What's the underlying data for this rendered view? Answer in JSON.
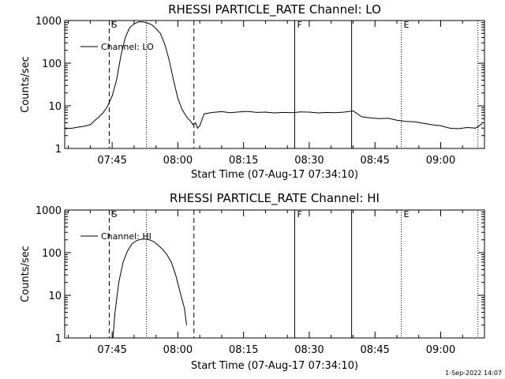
{
  "chart_data": [
    {
      "type": "line",
      "title": "RHESSI PARTICLE_RATE Channel: LO",
      "xlabel": "Start Time (07-Aug-17 07:34:10)",
      "ylabel": "Counts/sec",
      "yscale": "log",
      "ylim": [
        1,
        1000
      ],
      "xlim": [
        "07:34:10",
        "09:10:00"
      ],
      "x_ticks": [
        "07:45",
        "08:00",
        "08:15",
        "08:30",
        "08:45",
        "09:00"
      ],
      "y_ticks": [
        "1",
        "10",
        "100",
        "1000"
      ],
      "legend": "Channel: LO",
      "legend_position": "top-left",
      "marker_labels": [
        "S",
        "F",
        "E"
      ],
      "vlines": [
        {
          "x": "07:44:20",
          "style": "dashed"
        },
        {
          "x": "07:52:50",
          "style": "dotted"
        },
        {
          "x": "08:03:40",
          "style": "dashed"
        },
        {
          "x": "08:26:40",
          "style": "solid"
        },
        {
          "x": "08:39:40",
          "style": "solid"
        },
        {
          "x": "08:51:00",
          "style": "dotted"
        },
        {
          "x": "09:08:30",
          "style": "dotted"
        }
      ],
      "series": [
        {
          "name": "Channel: LO",
          "x": [
            "07:34:10",
            "07:36:00",
            "07:37:30",
            "07:38:30",
            "07:40:00",
            "07:41:00",
            "07:42:00",
            "07:43:00",
            "07:44:00",
            "07:45:00",
            "07:46:00",
            "07:47:00",
            "07:48:00",
            "07:49:00",
            "07:50:00",
            "07:51:00",
            "07:52:00",
            "07:53:00",
            "07:54:00",
            "07:55:00",
            "07:56:00",
            "07:57:00",
            "07:58:00",
            "07:59:00",
            "08:00:00",
            "08:01:00",
            "08:02:00",
            "08:03:00",
            "08:03:30",
            "08:04:00",
            "08:04:30",
            "08:05:00",
            "08:06:00",
            "08:08:00",
            "08:10:00",
            "08:12:00",
            "08:14:00",
            "08:16:00",
            "08:18:00",
            "08:20:00",
            "08:22:00",
            "08:24:00",
            "08:26:00",
            "08:28:00",
            "08:30:00",
            "08:32:00",
            "08:34:00",
            "08:36:00",
            "08:38:00",
            "08:40:00",
            "08:42:00",
            "08:44:00",
            "08:46:00",
            "08:48:00",
            "08:50:00",
            "08:52:00",
            "08:54:00",
            "08:56:00",
            "08:58:00",
            "09:00:00",
            "09:02:00",
            "09:04:00",
            "09:06:00",
            "09:08:00",
            "09:09:30"
          ],
          "values": [
            2.9,
            3.0,
            3.2,
            3.3,
            3.6,
            4.5,
            5.5,
            7,
            10,
            17,
            40,
            150,
            400,
            680,
            830,
            930,
            930,
            880,
            800,
            650,
            500,
            280,
            120,
            40,
            15,
            8,
            5.5,
            4.2,
            3.6,
            4.0,
            3.0,
            3.4,
            6.5,
            7.0,
            7.3,
            6.9,
            7.2,
            7.4,
            7.0,
            7.1,
            6.8,
            7.0,
            6.9,
            7.2,
            7.1,
            6.8,
            7.0,
            6.9,
            7.1,
            7.6,
            5.5,
            5.2,
            5.0,
            5.1,
            4.6,
            4.3,
            4.2,
            3.9,
            3.6,
            3.4,
            3.0,
            2.9,
            3.1,
            3.0,
            3.8
          ]
        }
      ]
    },
    {
      "type": "line",
      "title": "RHESSI PARTICLE_RATE Channel: HI",
      "xlabel": "Start Time (07-Aug-17 07:34:10)",
      "ylabel": "Counts/sec",
      "yscale": "log",
      "ylim": [
        1,
        1000
      ],
      "xlim": [
        "07:34:10",
        "09:10:00"
      ],
      "x_ticks": [
        "07:45",
        "08:00",
        "08:15",
        "08:30",
        "08:45",
        "09:00"
      ],
      "y_ticks": [
        "1",
        "10",
        "100",
        "1000"
      ],
      "legend": "Channel: HI",
      "legend_position": "top-left",
      "marker_labels": [
        "S",
        "F",
        "E"
      ],
      "vlines": [
        {
          "x": "07:44:20",
          "style": "dashed"
        },
        {
          "x": "07:52:50",
          "style": "dotted"
        },
        {
          "x": "08:03:40",
          "style": "dashed"
        },
        {
          "x": "08:26:40",
          "style": "solid"
        },
        {
          "x": "08:39:40",
          "style": "solid"
        },
        {
          "x": "08:51:00",
          "style": "dotted"
        },
        {
          "x": "09:08:30",
          "style": "dotted"
        }
      ],
      "series": [
        {
          "name": "Channel: HI",
          "x": [
            "07:45:10",
            "07:45:40",
            "07:46:30",
            "07:47:30",
            "07:48:30",
            "07:49:30",
            "07:50:30",
            "07:51:30",
            "07:52:30",
            "07:53:30",
            "07:54:30",
            "07:55:30",
            "07:56:30",
            "07:57:30",
            "07:58:30",
            "07:59:30",
            "08:00:30",
            "08:01:30",
            "08:02:00"
          ],
          "values": [
            1.0,
            4,
            20,
            60,
            110,
            160,
            190,
            205,
            210,
            200,
            180,
            150,
            120,
            90,
            60,
            30,
            12,
            5,
            2.0
          ]
        }
      ]
    }
  ],
  "stamp": "1-Sep-2022 14:07"
}
